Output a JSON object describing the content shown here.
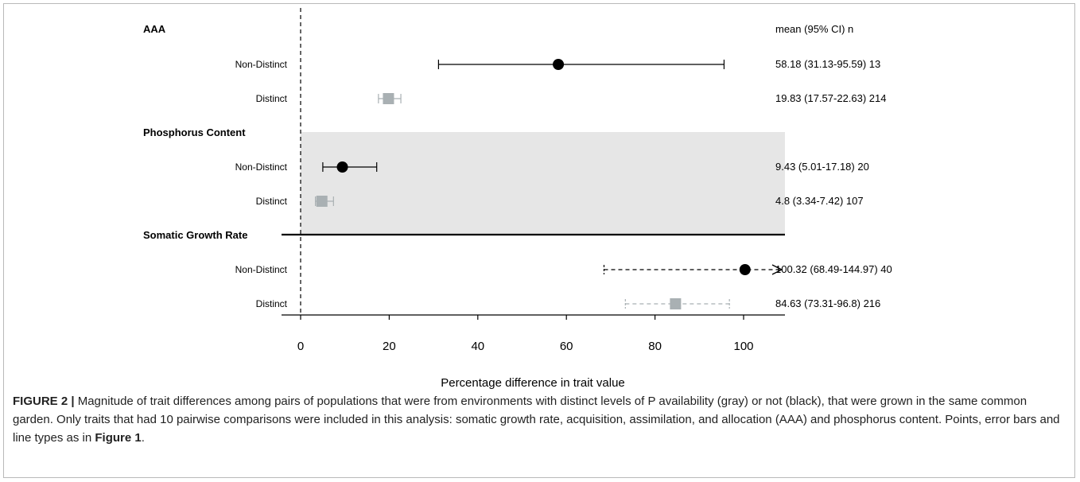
{
  "chart_data": {
    "type": "forest",
    "xlabel": "Percentage difference in trait value",
    "xlim": [
      -5,
      110
    ],
    "xticks": [
      0,
      20,
      40,
      60,
      80,
      100
    ],
    "reference_line_x": 0,
    "stats_header": "mean (95% CI) n",
    "groups": [
      {
        "name": "AAA",
        "shaded": false,
        "rows": [
          {
            "label": "Non-Distinct",
            "mean": 58.18,
            "lo": 31.13,
            "hi": 95.59,
            "n": 13,
            "color": "#000000",
            "marker": "circle",
            "linestyle": "solid",
            "arrow": false,
            "stat_text": "58.18 (31.13-95.59) 13"
          },
          {
            "label": "Distinct",
            "mean": 19.83,
            "lo": 17.57,
            "hi": 22.63,
            "n": 214,
            "color": "#a9b0b3",
            "marker": "square",
            "linestyle": "solid",
            "arrow": false,
            "stat_text": "19.83 (17.57-22.63) 214"
          }
        ]
      },
      {
        "name": "Phosphorus Content",
        "shaded": true,
        "rows": [
          {
            "label": "Non-Distinct",
            "mean": 9.43,
            "lo": 5.01,
            "hi": 17.18,
            "n": 20,
            "color": "#000000",
            "marker": "circle",
            "linestyle": "solid",
            "arrow": false,
            "stat_text": "9.43 (5.01-17.18) 20"
          },
          {
            "label": "Distinct",
            "mean": 4.8,
            "lo": 3.34,
            "hi": 7.42,
            "n": 107,
            "color": "#a9b0b3",
            "marker": "square",
            "linestyle": "solid",
            "arrow": false,
            "stat_text": "4.8 (3.34-7.42) 107"
          }
        ]
      },
      {
        "name": "Somatic Growth Rate",
        "shaded": false,
        "rows": [
          {
            "label": "Non-Distinct",
            "mean": 100.32,
            "lo": 68.49,
            "hi": 144.97,
            "n": 40,
            "color": "#000000",
            "marker": "circle",
            "linestyle": "dashed",
            "arrow": true,
            "stat_text": "100.32 (68.49-144.97) 40"
          },
          {
            "label": "Distinct",
            "mean": 84.63,
            "lo": 73.31,
            "hi": 96.8,
            "n": 216,
            "color": "#a9b0b3",
            "marker": "square",
            "linestyle": "dashed",
            "arrow": false,
            "stat_text": "84.63 (73.31-96.8) 216"
          }
        ]
      }
    ]
  },
  "caption": {
    "label": "FIGURE 2 |",
    "text_before_ref": " Magnitude of trait differences among pairs of populations that were from environments with distinct levels of P availability (gray) or not (black), that were grown in the same common garden. Only traits that had 10 pairwise comparisons were included in this analysis: somatic growth rate, acquisition, assimilation, and allocation (AAA) and phosphorus content. Points, error bars and line types as in ",
    "ref": "Figure 1",
    "text_after_ref": "."
  }
}
